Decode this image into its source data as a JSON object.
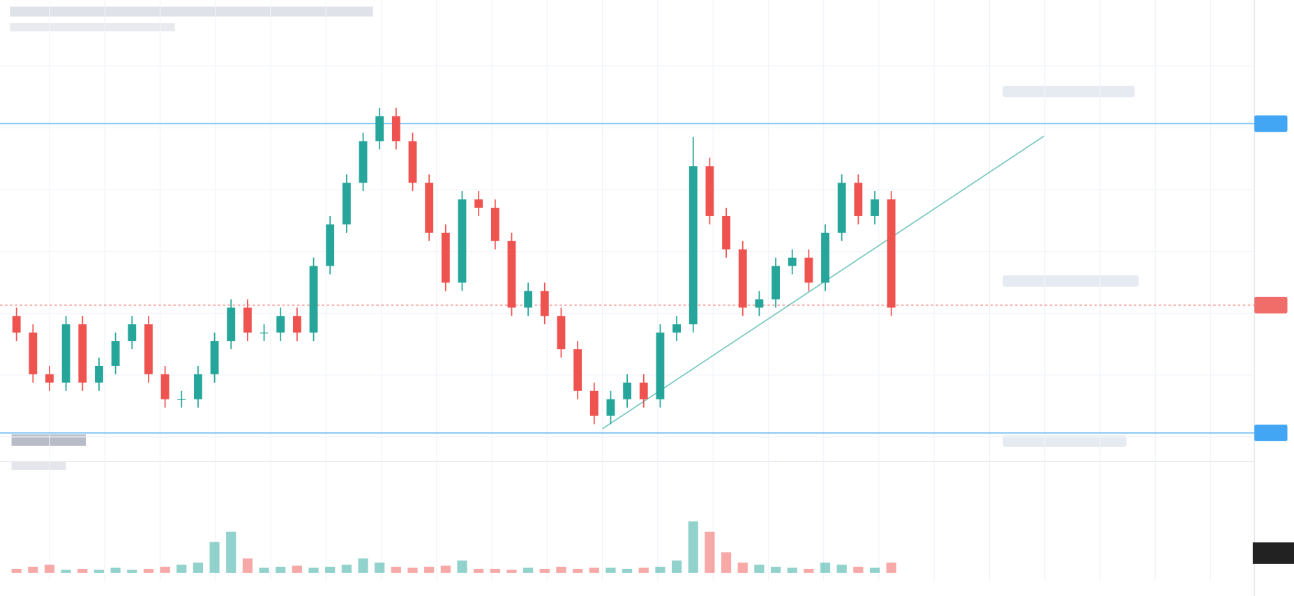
{
  "chart_data": {
    "type": "candlestick",
    "open": [
      34,
      30,
      20,
      18,
      32,
      18,
      22,
      28,
      32,
      20,
      14,
      14,
      20,
      28,
      36,
      30,
      30,
      34,
      30,
      46,
      56,
      66,
      76,
      82,
      76,
      66,
      54,
      42,
      62,
      60,
      52,
      36,
      40,
      34,
      26,
      16,
      10,
      14,
      18,
      14,
      30,
      32,
      70,
      58,
      50,
      36,
      38,
      46,
      48,
      42,
      54,
      66,
      58,
      62
    ],
    "high": [
      36,
      32,
      22,
      34,
      34,
      24,
      30,
      34,
      34,
      22,
      16,
      22,
      30,
      38,
      38,
      32,
      36,
      36,
      48,
      58,
      68,
      78,
      84,
      84,
      78,
      68,
      56,
      64,
      64,
      62,
      54,
      42,
      42,
      36,
      28,
      18,
      16,
      20,
      20,
      32,
      34,
      77,
      72,
      60,
      52,
      40,
      48,
      50,
      50,
      56,
      68,
      68,
      64,
      64
    ],
    "low": [
      28,
      18,
      16,
      16,
      16,
      16,
      20,
      26,
      18,
      12,
      12,
      12,
      18,
      26,
      28,
      28,
      28,
      28,
      28,
      44,
      54,
      64,
      74,
      74,
      64,
      52,
      40,
      40,
      58,
      50,
      34,
      34,
      32,
      24,
      14,
      8,
      8,
      12,
      12,
      12,
      28,
      30,
      56,
      48,
      34,
      34,
      36,
      44,
      40,
      40,
      52,
      56,
      56,
      34
    ],
    "close": [
      30,
      20,
      18,
      32,
      18,
      22,
      28,
      32,
      20,
      14,
      14,
      20,
      28,
      36,
      30,
      30,
      34,
      30,
      46,
      56,
      66,
      76,
      82,
      76,
      66,
      54,
      42,
      62,
      60,
      52,
      36,
      40,
      34,
      26,
      16,
      10,
      14,
      18,
      14,
      30,
      32,
      70,
      58,
      50,
      36,
      38,
      46,
      48,
      42,
      54,
      66,
      58,
      62,
      36
    ],
    "up_color": "#26a69a",
    "down_color": "#ef5350",
    "ylim": [
      0,
      100
    ],
    "volume": {
      "values": [
        4,
        6,
        8,
        3,
        4,
        3,
        5,
        3,
        4,
        6,
        8,
        10,
        30,
        40,
        14,
        5,
        6,
        7,
        5,
        6,
        8,
        14,
        10,
        6,
        5,
        6,
        7,
        12,
        4,
        4,
        3,
        5,
        4,
        6,
        4,
        5,
        5,
        4,
        5,
        6,
        12,
        50,
        40,
        20,
        10,
        8,
        6,
        5,
        4,
        10,
        8,
        6,
        5,
        10
      ],
      "ylim": [
        0,
        100
      ]
    },
    "levels": [
      {
        "value": 80.2,
        "color": "#2196f3",
        "style": "solid"
      },
      {
        "value": 36.6,
        "color": "#ef5350",
        "style": "dashed"
      },
      {
        "value": 5.9,
        "color": "#2196f3",
        "style": "solid"
      }
    ],
    "trendline": {
      "x": [
        35.5,
        62.25
      ],
      "values": [
        6.9,
        77.2
      ],
      "color": "#26a69a"
    },
    "grid": true
  }
}
